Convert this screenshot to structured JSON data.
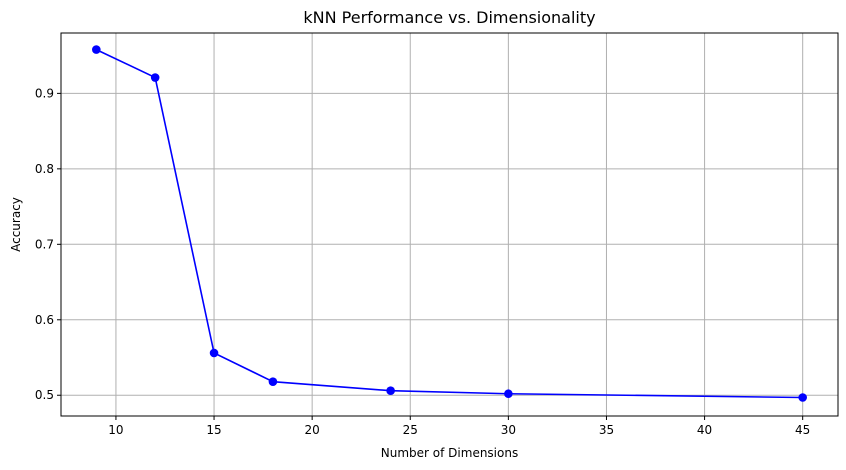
{
  "chart_data": {
    "type": "line",
    "title": "kNN Performance vs. Dimensionality",
    "xlabel": "Number of Dimensions",
    "ylabel": "Accuracy",
    "xlim": [
      7.2,
      46.8
    ],
    "ylim": [
      0.4725,
      0.98
    ],
    "xticks": [
      10,
      15,
      20,
      25,
      30,
      35,
      40,
      45
    ],
    "yticks": [
      0.5,
      0.6,
      0.7,
      0.8,
      0.9
    ],
    "grid": true,
    "colors": {
      "line": "#0000ff",
      "marker": "#0000ff",
      "grid": "#b0b0b0",
      "axes": "#000000"
    },
    "series": [
      {
        "marker": "circle",
        "x": [
          9,
          12,
          15,
          18,
          24,
          30,
          45
        ],
        "y": [
          0.958,
          0.921,
          0.556,
          0.518,
          0.506,
          0.502,
          0.497
        ]
      }
    ]
  }
}
